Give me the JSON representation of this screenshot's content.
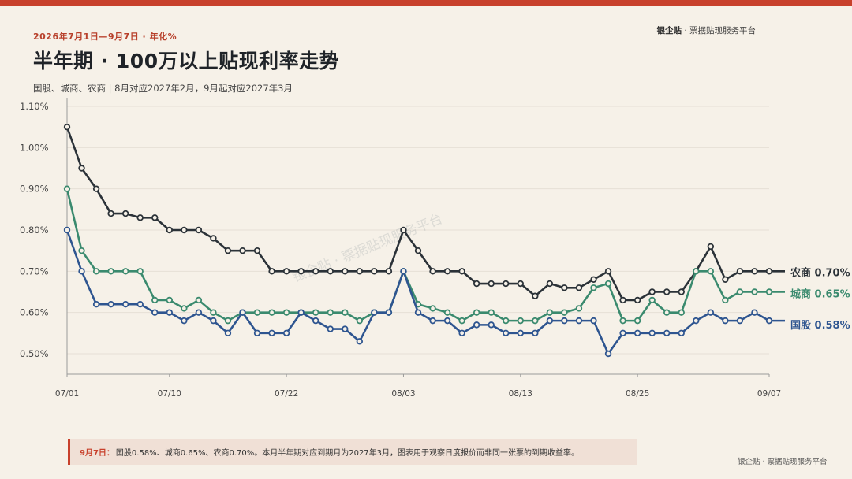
{
  "header": {
    "date_range": "2026年7月1日—9月7日 · 年化%",
    "title": "半年期 · 100万以上贴现利率走势",
    "subtitle": "国股、城商、农商 | 8月对应2027年2月，9月起对应2027年3月",
    "brand_name": "银企贴",
    "brand_tagline": " · 票据贴现服务平台"
  },
  "watermark": "银企贴 · 票据贴现服务平台",
  "note": {
    "date_label": "9月7日：",
    "text": "国股0.58%、城商0.65%、农商0.70%。本月半年期对应到期月为2027年3月，图表用于观察日度报价而非同一张票的到期收益率。"
  },
  "footer_brand": "银企贴 · 票据贴现服务平台",
  "colors": {
    "nongshang": "#2b3238",
    "chengshang": "#3a8a6e",
    "guogu": "#2e5590",
    "accent": "#c8412c",
    "grid": "#e6e0d6",
    "axis": "#9a9a9a"
  },
  "chart_data": {
    "type": "line",
    "x_tick_labels": [
      "07/01",
      "07/10",
      "07/22",
      "08/03",
      "08/13",
      "08/25",
      "09/07"
    ],
    "x_tick_indices": [
      0,
      7,
      15,
      23,
      31,
      39,
      48
    ],
    "y_ticks": [
      "0.50%",
      "0.60%",
      "0.70%",
      "0.80%",
      "0.90%",
      "1.00%",
      "1.10%"
    ],
    "ylim": [
      0.45,
      1.1
    ],
    "grid": "horizontal",
    "series": [
      {
        "name": "农商",
        "end_label": "农商 0.70%",
        "color_key": "nongshang",
        "values": [
          1.05,
          0.95,
          0.9,
          0.84,
          0.84,
          0.83,
          0.83,
          0.8,
          0.8,
          0.8,
          0.78,
          0.75,
          0.75,
          0.75,
          0.7,
          0.7,
          0.7,
          0.7,
          0.7,
          0.7,
          0.7,
          0.7,
          0.7,
          0.8,
          0.75,
          0.7,
          0.7,
          0.7,
          0.67,
          0.67,
          0.67,
          0.67,
          0.64,
          0.67,
          0.66,
          0.66,
          0.68,
          0.7,
          0.63,
          0.63,
          0.65,
          0.65,
          0.65,
          0.7,
          0.76,
          0.68,
          0.7,
          0.7,
          0.7
        ]
      },
      {
        "name": "城商",
        "end_label": "城商 0.65%",
        "color_key": "chengshang",
        "values": [
          0.9,
          0.75,
          0.7,
          0.7,
          0.7,
          0.7,
          0.63,
          0.63,
          0.61,
          0.63,
          0.6,
          0.58,
          0.6,
          0.6,
          0.6,
          0.6,
          0.6,
          0.6,
          0.6,
          0.6,
          0.58,
          0.6,
          0.6,
          0.7,
          0.62,
          0.61,
          0.6,
          0.58,
          0.6,
          0.6,
          0.58,
          0.58,
          0.58,
          0.6,
          0.6,
          0.61,
          0.66,
          0.67,
          0.58,
          0.58,
          0.63,
          0.6,
          0.6,
          0.7,
          0.7,
          0.63,
          0.65,
          0.65,
          0.65
        ]
      },
      {
        "name": "国股",
        "end_label": "国股 0.58%",
        "color_key": "guogu",
        "values": [
          0.8,
          0.7,
          0.62,
          0.62,
          0.62,
          0.62,
          0.6,
          0.6,
          0.58,
          0.6,
          0.58,
          0.55,
          0.6,
          0.55,
          0.55,
          0.55,
          0.6,
          0.58,
          0.56,
          0.56,
          0.53,
          0.6,
          0.6,
          0.7,
          0.6,
          0.58,
          0.58,
          0.55,
          0.57,
          0.57,
          0.55,
          0.55,
          0.55,
          0.58,
          0.58,
          0.58,
          0.58,
          0.5,
          0.55,
          0.55,
          0.55,
          0.55,
          0.55,
          0.58,
          0.6,
          0.58,
          0.58,
          0.6,
          0.58
        ]
      }
    ]
  }
}
